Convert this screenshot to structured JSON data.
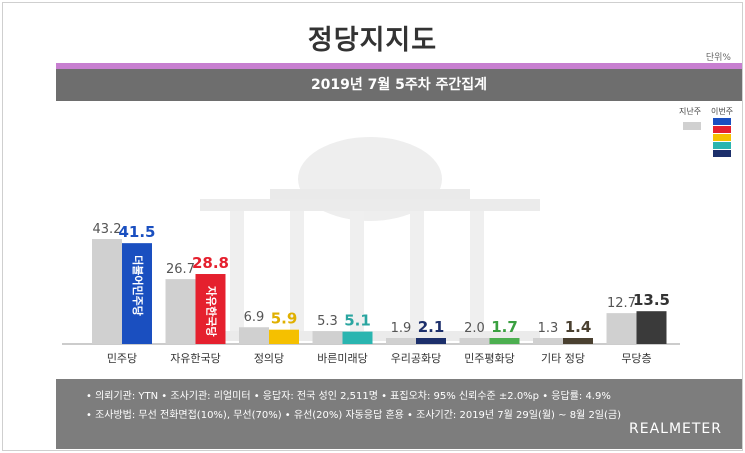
{
  "header": {
    "title": "정당지지도",
    "unit": "단위%",
    "subtitle": "2019년 7월 5주차 주간집계"
  },
  "legend": {
    "previous_label": "지난주",
    "current_label": "이번주",
    "previous_color": "#d0d0d0",
    "current_swatch_colors": [
      "#1a4fc0",
      "#e5202e",
      "#f5c000",
      "#2ab5b0",
      "#1c2f6b"
    ]
  },
  "chart_data": {
    "type": "bar",
    "categories": [
      "민주당",
      "자유한국당",
      "정의당",
      "바른미래당",
      "우리공화당",
      "민주평화당",
      "기타 정당",
      "무당층"
    ],
    "series": [
      {
        "name": "지난주",
        "values": [
          43.2,
          26.7,
          6.9,
          5.3,
          1.9,
          2.0,
          1.3,
          12.7
        ],
        "color": "#d0d0d0"
      },
      {
        "name": "이번주",
        "values": [
          41.5,
          28.8,
          5.9,
          5.1,
          2.1,
          1.7,
          1.4,
          13.5
        ],
        "colors": [
          "#1a4fc0",
          "#e5202e",
          "#f5c000",
          "#2ab5b0",
          "#1c2f6b",
          "#4caf50",
          "#4a4030",
          "#3a3a3a"
        ],
        "label_colors": [
          "#1a4fc0",
          "#e5202e",
          "#e0b000",
          "#2aa5a0",
          "#1c2f6b",
          "#3aa040",
          "#4a4030",
          "#333333"
        ]
      }
    ],
    "previous_labels": [
      "43.2",
      "26.7",
      "6.9",
      "5.3",
      "1.9",
      "2.0",
      "1.3",
      "12.7"
    ],
    "current_labels": [
      "41.5",
      "28.8",
      "5.9",
      "5.1",
      "2.1",
      "1.7",
      "1.4",
      "13.5"
    ],
    "bar_texts": [
      "더불어민주당",
      "자유한국당"
    ],
    "ylim": [
      0,
      45
    ],
    "grid": false
  },
  "footer": {
    "line1": "• 의뢰기관: YTN • 조사기관: 리얼미터 • 응답자: 전국 성인 2,511명 • 표집오차: 95% 신뢰수준 ±2.0%p • 응답률: 4.9%",
    "line2": "• 조사방법: 무선 전화면접(10%), 무선(70%) • 유선(20%) 자동응답 혼용  • 조사기간: 2019년 7월 29일(월) ~ 8월 2일(금)",
    "brand": "REALMETER"
  }
}
